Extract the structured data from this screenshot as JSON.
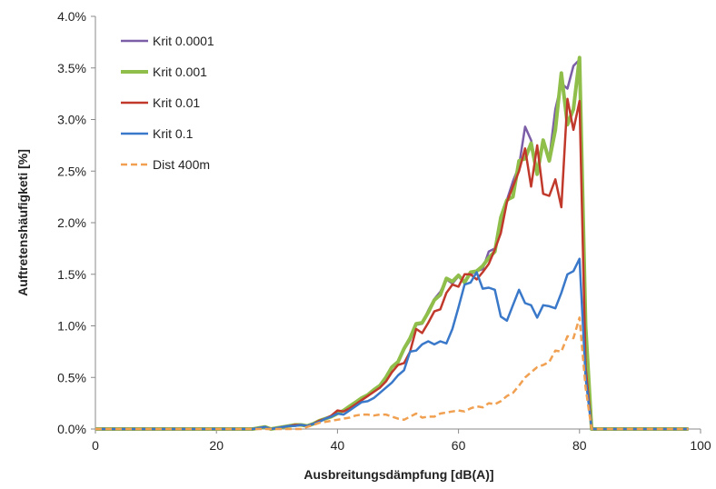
{
  "chart_data": {
    "type": "line",
    "title": "",
    "xlabel": "Ausbreitungsdämpfung [dB(A)]",
    "ylabel": "Auftretenshäufigketi [%]",
    "xlim": [
      0,
      100
    ],
    "ylim": [
      0,
      4.0
    ],
    "xticks": [
      0,
      20,
      40,
      60,
      80,
      100
    ],
    "xtick_labels": [
      "0",
      "20",
      "40",
      "60",
      "80",
      "100"
    ],
    "yticks": [
      0,
      0.5,
      1.0,
      1.5,
      2.0,
      2.5,
      3.0,
      3.5,
      4.0
    ],
    "ytick_labels": [
      "0.0%",
      "0.5%",
      "1.0%",
      "1.5%",
      "2.0%",
      "2.5%",
      "3.0%",
      "3.5%",
      "4.0%"
    ],
    "grid": false,
    "legend_position": "top-left",
    "series": [
      {
        "name": "Krit 0.0001",
        "color": "#7b5ea7",
        "dash": "solid",
        "width": 2.5,
        "points": [
          [
            0,
            0
          ],
          [
            26,
            0
          ],
          [
            27,
            0.01
          ],
          [
            28,
            0.02
          ],
          [
            29,
            0
          ],
          [
            30,
            0.01
          ],
          [
            31,
            0.02
          ],
          [
            32,
            0.03
          ],
          [
            33,
            0.04
          ],
          [
            34,
            0.04
          ],
          [
            35,
            0.03
          ],
          [
            36,
            0.05
          ],
          [
            37,
            0.08
          ],
          [
            38,
            0.1
          ],
          [
            39,
            0.12
          ],
          [
            40,
            0.15
          ],
          [
            41,
            0.18
          ],
          [
            42,
            0.22
          ],
          [
            43,
            0.26
          ],
          [
            44,
            0.28
          ],
          [
            45,
            0.32
          ],
          [
            46,
            0.37
          ],
          [
            47,
            0.4
          ],
          [
            48,
            0.48
          ],
          [
            49,
            0.6
          ],
          [
            50,
            0.64
          ],
          [
            51,
            0.77
          ],
          [
            52,
            0.86
          ],
          [
            53,
            1.01
          ],
          [
            54,
            1.02
          ],
          [
            55,
            1.15
          ],
          [
            56,
            1.26
          ],
          [
            57,
            1.33
          ],
          [
            58,
            1.45
          ],
          [
            59,
            1.41
          ],
          [
            60,
            1.48
          ],
          [
            61,
            1.42
          ],
          [
            62,
            1.5
          ],
          [
            63,
            1.53
          ],
          [
            64,
            1.55
          ],
          [
            65,
            1.72
          ],
          [
            66,
            1.75
          ],
          [
            67,
            1.98
          ],
          [
            68,
            2.22
          ],
          [
            69,
            2.4
          ],
          [
            70,
            2.55
          ],
          [
            71,
            2.93
          ],
          [
            72,
            2.8
          ],
          [
            73,
            2.5
          ],
          [
            74,
            2.8
          ],
          [
            75,
            2.62
          ],
          [
            76,
            3.1
          ],
          [
            77,
            3.35
          ],
          [
            78,
            3.3
          ],
          [
            79,
            3.52
          ],
          [
            80,
            3.58
          ],
          [
            81,
            1.0
          ],
          [
            82,
            0
          ],
          [
            98,
            0
          ]
        ]
      },
      {
        "name": "Krit 0.001",
        "color": "#8fbf4a",
        "dash": "solid",
        "width": 4,
        "points": [
          [
            0,
            0
          ],
          [
            26,
            0
          ],
          [
            27,
            0.01
          ],
          [
            28,
            0.02
          ],
          [
            29,
            0
          ],
          [
            30,
            0.01
          ],
          [
            31,
            0.02
          ],
          [
            32,
            0.03
          ],
          [
            33,
            0.04
          ],
          [
            34,
            0.04
          ],
          [
            35,
            0.03
          ],
          [
            36,
            0.05
          ],
          [
            37,
            0.08
          ],
          [
            38,
            0.1
          ],
          [
            39,
            0.12
          ],
          [
            40,
            0.15
          ],
          [
            41,
            0.18
          ],
          [
            42,
            0.22
          ],
          [
            43,
            0.26
          ],
          [
            44,
            0.3
          ],
          [
            45,
            0.33
          ],
          [
            46,
            0.38
          ],
          [
            47,
            0.42
          ],
          [
            48,
            0.5
          ],
          [
            49,
            0.6
          ],
          [
            50,
            0.65
          ],
          [
            51,
            0.78
          ],
          [
            52,
            0.88
          ],
          [
            53,
            1.02
          ],
          [
            54,
            1.03
          ],
          [
            55,
            1.13
          ],
          [
            56,
            1.25
          ],
          [
            57,
            1.3
          ],
          [
            58,
            1.46
          ],
          [
            59,
            1.43
          ],
          [
            60,
            1.49
          ],
          [
            61,
            1.42
          ],
          [
            62,
            1.52
          ],
          [
            63,
            1.53
          ],
          [
            64,
            1.58
          ],
          [
            65,
            1.66
          ],
          [
            66,
            1.72
          ],
          [
            67,
            2.05
          ],
          [
            68,
            2.22
          ],
          [
            69,
            2.25
          ],
          [
            70,
            2.6
          ],
          [
            71,
            2.62
          ],
          [
            72,
            2.77
          ],
          [
            73,
            2.47
          ],
          [
            74,
            2.8
          ],
          [
            75,
            2.6
          ],
          [
            76,
            2.9
          ],
          [
            77,
            3.45
          ],
          [
            78,
            2.95
          ],
          [
            79,
            3.1
          ],
          [
            80,
            3.6
          ],
          [
            81,
            1.0
          ],
          [
            82,
            0
          ],
          [
            98,
            0
          ]
        ]
      },
      {
        "name": "Krit 0.01",
        "color": "#c0392b",
        "dash": "solid",
        "width": 2.5,
        "points": [
          [
            0,
            0
          ],
          [
            26,
            0
          ],
          [
            27,
            0.01
          ],
          [
            28,
            0.02
          ],
          [
            29,
            0
          ],
          [
            30,
            0.01
          ],
          [
            31,
            0.02
          ],
          [
            32,
            0.03
          ],
          [
            33,
            0.04
          ],
          [
            34,
            0.04
          ],
          [
            35,
            0.03
          ],
          [
            36,
            0.05
          ],
          [
            37,
            0.08
          ],
          [
            38,
            0.1
          ],
          [
            39,
            0.13
          ],
          [
            40,
            0.18
          ],
          [
            41,
            0.17
          ],
          [
            42,
            0.2
          ],
          [
            43,
            0.24
          ],
          [
            44,
            0.28
          ],
          [
            45,
            0.32
          ],
          [
            46,
            0.36
          ],
          [
            47,
            0.4
          ],
          [
            48,
            0.46
          ],
          [
            49,
            0.55
          ],
          [
            50,
            0.62
          ],
          [
            51,
            0.64
          ],
          [
            52,
            0.75
          ],
          [
            53,
            0.97
          ],
          [
            54,
            0.93
          ],
          [
            55,
            1.03
          ],
          [
            56,
            1.14
          ],
          [
            57,
            1.16
          ],
          [
            58,
            1.32
          ],
          [
            59,
            1.4
          ],
          [
            60,
            1.38
          ],
          [
            61,
            1.5
          ],
          [
            62,
            1.5
          ],
          [
            63,
            1.45
          ],
          [
            64,
            1.52
          ],
          [
            65,
            1.6
          ],
          [
            66,
            1.74
          ],
          [
            67,
            1.9
          ],
          [
            68,
            2.2
          ],
          [
            69,
            2.35
          ],
          [
            70,
            2.5
          ],
          [
            71,
            2.72
          ],
          [
            72,
            2.35
          ],
          [
            73,
            2.75
          ],
          [
            74,
            2.28
          ],
          [
            75,
            2.26
          ],
          [
            76,
            2.42
          ],
          [
            77,
            2.15
          ],
          [
            78,
            3.2
          ],
          [
            79,
            2.9
          ],
          [
            80,
            3.18
          ],
          [
            81,
            0.6
          ],
          [
            82,
            0
          ],
          [
            98,
            0
          ]
        ]
      },
      {
        "name": "Krit 0.1",
        "color": "#3a78c9",
        "dash": "solid",
        "width": 2.5,
        "points": [
          [
            0,
            0
          ],
          [
            26,
            0
          ],
          [
            27,
            0.01
          ],
          [
            28,
            0.02
          ],
          [
            29,
            0
          ],
          [
            30,
            0.01
          ],
          [
            31,
            0.02
          ],
          [
            32,
            0.03
          ],
          [
            33,
            0.03
          ],
          [
            34,
            0.04
          ],
          [
            35,
            0.03
          ],
          [
            36,
            0.05
          ],
          [
            37,
            0.07
          ],
          [
            38,
            0.1
          ],
          [
            39,
            0.12
          ],
          [
            40,
            0.15
          ],
          [
            41,
            0.14
          ],
          [
            42,
            0.18
          ],
          [
            43,
            0.22
          ],
          [
            44,
            0.26
          ],
          [
            45,
            0.27
          ],
          [
            46,
            0.3
          ],
          [
            47,
            0.35
          ],
          [
            48,
            0.4
          ],
          [
            49,
            0.45
          ],
          [
            50,
            0.52
          ],
          [
            51,
            0.57
          ],
          [
            52,
            0.75
          ],
          [
            53,
            0.76
          ],
          [
            54,
            0.82
          ],
          [
            55,
            0.85
          ],
          [
            56,
            0.82
          ],
          [
            57,
            0.85
          ],
          [
            58,
            0.83
          ],
          [
            59,
            0.97
          ],
          [
            60,
            1.18
          ],
          [
            61,
            1.4
          ],
          [
            62,
            1.42
          ],
          [
            63,
            1.52
          ],
          [
            64,
            1.36
          ],
          [
            65,
            1.37
          ],
          [
            66,
            1.35
          ],
          [
            67,
            1.09
          ],
          [
            68,
            1.05
          ],
          [
            69,
            1.2
          ],
          [
            70,
            1.35
          ],
          [
            71,
            1.22
          ],
          [
            72,
            1.2
          ],
          [
            73,
            1.08
          ],
          [
            74,
            1.2
          ],
          [
            75,
            1.19
          ],
          [
            76,
            1.17
          ],
          [
            77,
            1.32
          ],
          [
            78,
            1.5
          ],
          [
            79,
            1.53
          ],
          [
            80,
            1.65
          ],
          [
            81,
            0.5
          ],
          [
            82,
            0
          ],
          [
            98,
            0
          ]
        ]
      },
      {
        "name": "Dist 400m",
        "color": "#f0a050",
        "dash": "dashed",
        "width": 2.5,
        "points": [
          [
            0,
            0
          ],
          [
            34,
            0
          ],
          [
            35,
            0.02
          ],
          [
            36,
            0.04
          ],
          [
            37,
            0.06
          ],
          [
            38,
            0.07
          ],
          [
            39,
            0.08
          ],
          [
            40,
            0.09
          ],
          [
            41,
            0.1
          ],
          [
            42,
            0.11
          ],
          [
            43,
            0.13
          ],
          [
            44,
            0.14
          ],
          [
            45,
            0.14
          ],
          [
            46,
            0.13
          ],
          [
            47,
            0.14
          ],
          [
            48,
            0.14
          ],
          [
            49,
            0.12
          ],
          [
            50,
            0.1
          ],
          [
            51,
            0.09
          ],
          [
            52,
            0.12
          ],
          [
            53,
            0.15
          ],
          [
            54,
            0.11
          ],
          [
            55,
            0.12
          ],
          [
            56,
            0.12
          ],
          [
            57,
            0.15
          ],
          [
            58,
            0.16
          ],
          [
            59,
            0.17
          ],
          [
            60,
            0.18
          ],
          [
            61,
            0.17
          ],
          [
            62,
            0.2
          ],
          [
            63,
            0.22
          ],
          [
            64,
            0.21
          ],
          [
            65,
            0.25
          ],
          [
            66,
            0.24
          ],
          [
            67,
            0.27
          ],
          [
            68,
            0.32
          ],
          [
            69,
            0.35
          ],
          [
            70,
            0.42
          ],
          [
            71,
            0.5
          ],
          [
            72,
            0.55
          ],
          [
            73,
            0.6
          ],
          [
            74,
            0.62
          ],
          [
            75,
            0.65
          ],
          [
            76,
            0.76
          ],
          [
            77,
            0.75
          ],
          [
            78,
            0.9
          ],
          [
            79,
            0.88
          ],
          [
            80,
            1.08
          ],
          [
            81,
            0.4
          ],
          [
            82,
            0
          ],
          [
            98,
            0
          ]
        ]
      }
    ]
  }
}
